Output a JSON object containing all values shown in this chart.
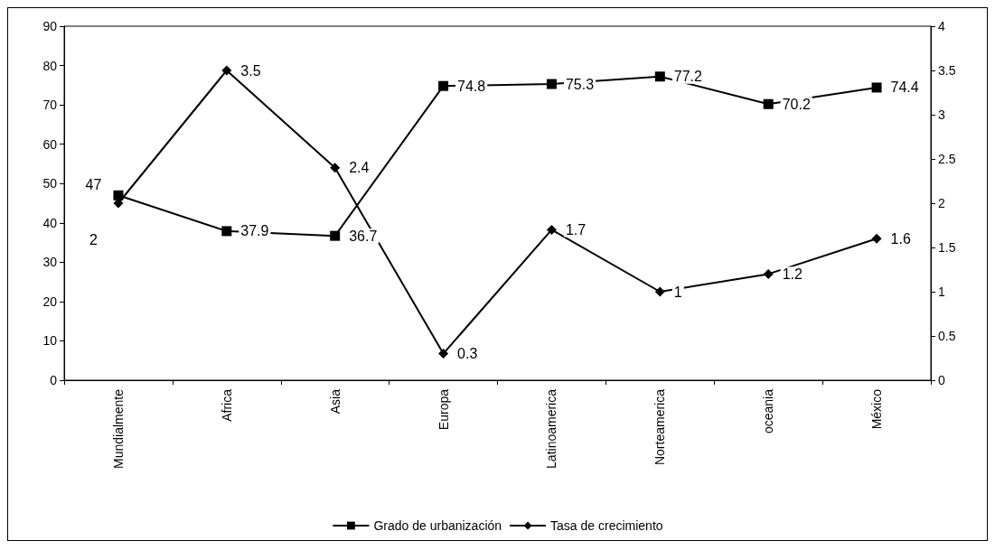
{
  "chart_data": {
    "type": "line",
    "categories": [
      "Mundialmente",
      "Africa",
      "Asia",
      "Europa",
      "Latinoamerica",
      "Norteamerica",
      "oceania",
      "México"
    ],
    "series": [
      {
        "name": "Grado de urbanización",
        "color": "#000000",
        "marker": "square",
        "values": [
          47,
          37.9,
          36.7,
          74.8,
          75.3,
          77.2,
          70.2,
          74.4
        ]
      },
      {
        "name": "Tasa de crecimiento",
        "color": "#000000",
        "marker": "diamond",
        "axis": "y2",
        "values": [
          2,
          3.5,
          2.4,
          0.3,
          1.7,
          1,
          1.2,
          1.6
        ]
      }
    ],
    "ylim": [
      0,
      90
    ],
    "yticks": [
      0,
      10,
      20,
      30,
      40,
      50,
      60,
      70,
      80,
      90
    ],
    "y2lim": [
      0,
      4
    ],
    "y2ticks": [
      0,
      0.5,
      1,
      1.5,
      2,
      2.5,
      3,
      3.5,
      4
    ],
    "data_labels": true,
    "grid": false,
    "legend": "bottom",
    "line_style": "solid"
  }
}
